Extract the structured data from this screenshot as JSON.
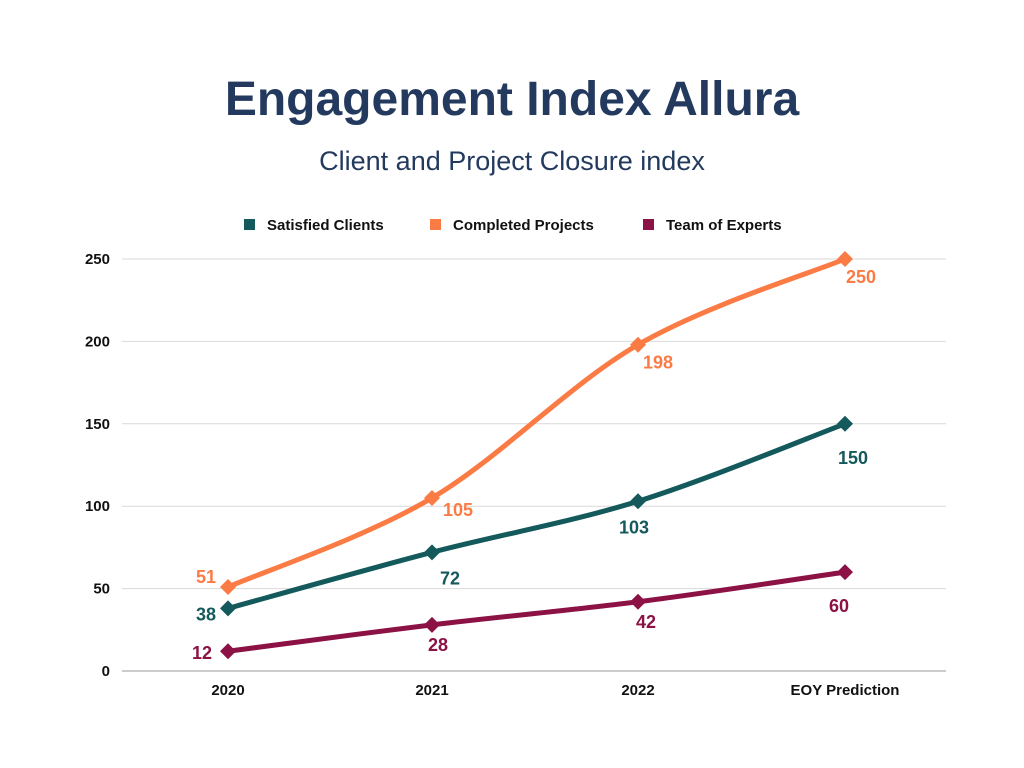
{
  "chart_data": {
    "type": "line",
    "title": "Engagement Index Allura",
    "subtitle": "Client and Project Closure index",
    "categories": [
      "2020",
      "2021",
      "2022",
      "EOY Prediction"
    ],
    "ylim": [
      0,
      250
    ],
    "yticks": [
      0,
      50,
      100,
      150,
      200,
      250
    ],
    "grid": true,
    "legend_position": "top",
    "series": [
      {
        "name": "Satisfied Clients",
        "color": "#14595b",
        "values": [
          38,
          72,
          103,
          150
        ]
      },
      {
        "name": "Completed Projects",
        "color": "#fb7b45",
        "values": [
          51,
          105,
          198,
          250
        ]
      },
      {
        "name": "Team of Experts",
        "color": "#8c1145",
        "values": [
          12,
          28,
          42,
          60
        ]
      }
    ]
  }
}
